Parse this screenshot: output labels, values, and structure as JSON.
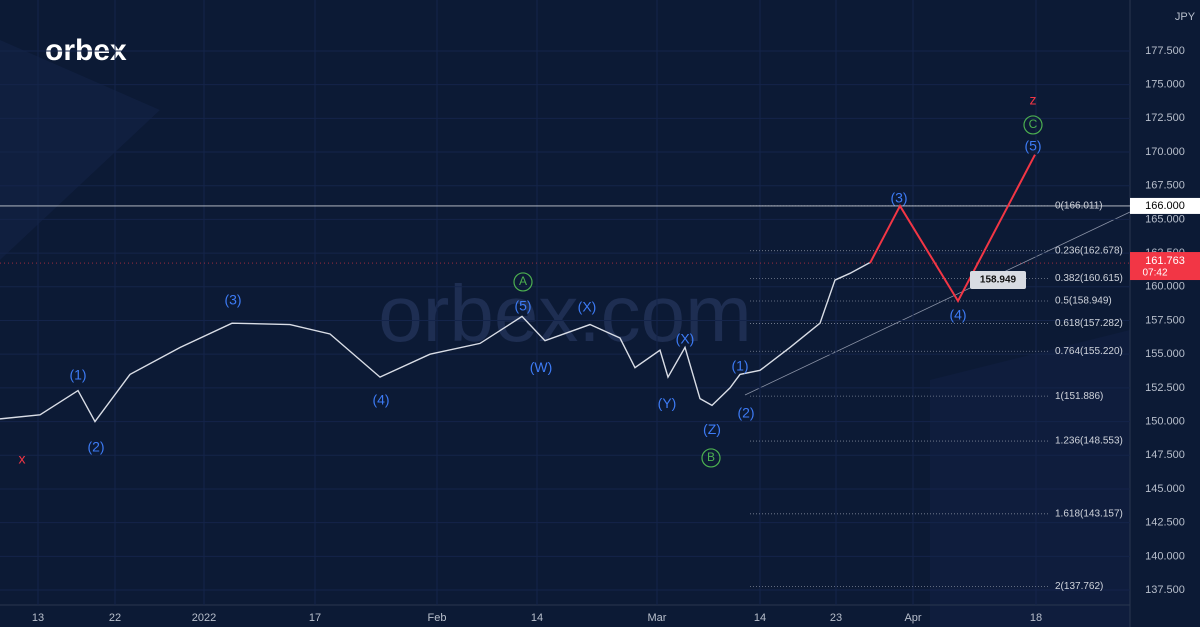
{
  "chart_data": {
    "type": "line",
    "symbol": "JPY",
    "logo": "orbex",
    "watermark": "orbex.com",
    "color": "#d9dde6",
    "x": [
      0,
      8,
      15.6,
      19,
      26,
      36,
      46.4,
      58,
      66,
      76,
      86,
      96,
      104.4,
      109,
      118,
      124,
      127,
      132,
      133.6,
      137,
      140,
      142.4,
      146,
      148,
      152,
      158,
      164,
      167,
      170,
      174
    ],
    "values": [
      150.2,
      150.5,
      152.3,
      150,
      153.5,
      155.5,
      157.3,
      157.2,
      156.5,
      153.3,
      155,
      155.8,
      157.8,
      156,
      157.2,
      156.2,
      154,
      155.3,
      153.3,
      155.5,
      151.7,
      151.2,
      152.5,
      153.5,
      153.8,
      155.5,
      157.3,
      160.5,
      161,
      161.8
    ],
    "xlim": [
      0,
      226
    ],
    "ylim": [
      181.28,
      136.39
    ],
    "xticks": [
      {
        "value": 7.6,
        "label": "13"
      },
      {
        "value": 23,
        "label": "22"
      },
      {
        "value": 40.8,
        "label": "2022"
      },
      {
        "value": 63,
        "label": "17"
      },
      {
        "value": 87.4,
        "label": "Feb"
      },
      {
        "value": 107.4,
        "label": "14"
      },
      {
        "value": 131.4,
        "label": "Mar"
      },
      {
        "value": 152,
        "label": "14"
      },
      {
        "value": 167.2,
        "label": "23"
      },
      {
        "value": 182.6,
        "label": "Apr"
      },
      {
        "value": 207.2,
        "label": "18"
      }
    ],
    "yticks": [
      {
        "value": 137.5,
        "label": "137.500"
      },
      {
        "value": 140,
        "label": "140.000"
      },
      {
        "value": 142.5,
        "label": "142.500"
      },
      {
        "value": 145,
        "label": "145.000"
      },
      {
        "value": 147.5,
        "label": "147.500"
      },
      {
        "value": 150,
        "label": "150.000"
      },
      {
        "value": 152.5,
        "label": "152.500"
      },
      {
        "value": 155,
        "label": "155.000"
      },
      {
        "value": 157.5,
        "label": "157.500"
      },
      {
        "value": 160,
        "label": "160.000"
      },
      {
        "value": 162.5,
        "label": "162.500"
      },
      {
        "value": 165,
        "label": "165.000"
      },
      {
        "value": 167.5,
        "label": "167.500"
      },
      {
        "value": 170,
        "label": "170.000"
      },
      {
        "value": 172.5,
        "label": "172.500"
      },
      {
        "value": 175,
        "label": "175.000"
      },
      {
        "value": 177.5,
        "label": "177.500"
      }
    ],
    "fib_levels": [
      {
        "label": "0(166.011)",
        "value": 166.011
      },
      {
        "label": "0.236(162.678)",
        "value": 162.678
      },
      {
        "label": "0.382(160.615)",
        "value": 160.615
      },
      {
        "label": "0.5(158.949)",
        "value": 158.949
      },
      {
        "label": "0.618(157.282)",
        "value": 157.282
      },
      {
        "label": "0.764(155.220)",
        "value": 155.22
      },
      {
        "label": "1(151.886)",
        "value": 151.886
      },
      {
        "label": "1.236(148.553)",
        "value": 148.553
      },
      {
        "label": "1.618(143.157)",
        "value": 143.157
      },
      {
        "label": "2(137.762)",
        "value": 137.762
      }
    ],
    "hline": {
      "value": 166.0,
      "label": "166.000"
    },
    "current_price": {
      "value": 161.763,
      "label": "161.763",
      "time": "07:42",
      "color": "#f23645"
    },
    "projection": {
      "x": [
        174,
        180,
        191.6,
        207
      ],
      "values": [
        161.76,
        166.0,
        158.949,
        169.8
      ],
      "color": "#f23645",
      "target": {
        "value": 158.949,
        "label": "158.949"
      }
    },
    "annotations": [
      {
        "text": "x",
        "x": 4.4,
        "y": 147.15,
        "color": "#f23645"
      },
      {
        "text": "(1)",
        "x": 15.6,
        "y": 153.38,
        "color": "#3d7bf5"
      },
      {
        "text": "(2)",
        "x": 19.2,
        "y": 148.04,
        "color": "#3d7bf5"
      },
      {
        "text": "(3)",
        "x": 46.6,
        "y": 158.95,
        "color": "#3d7bf5"
      },
      {
        "text": "(4)",
        "x": 76.2,
        "y": 151.53,
        "color": "#3d7bf5"
      },
      {
        "text": "A",
        "x": 104.6,
        "y": 160.36,
        "color": "#4caf50",
        "circled": true
      },
      {
        "text": "(5)",
        "x": 104.6,
        "y": 158.5,
        "color": "#3d7bf5"
      },
      {
        "text": "(W)",
        "x": 108.2,
        "y": 153.97,
        "color": "#3d7bf5"
      },
      {
        "text": "(X)",
        "x": 117.4,
        "y": 158.43,
        "color": "#3d7bf5"
      },
      {
        "text": "(X)",
        "x": 137,
        "y": 156.05,
        "color": "#3d7bf5"
      },
      {
        "text": "(Y)",
        "x": 133.4,
        "y": 151.3,
        "color": "#3d7bf5"
      },
      {
        "text": "(Z)",
        "x": 142.4,
        "y": 149.37,
        "color": "#3d7bf5"
      },
      {
        "text": "B",
        "x": 142.2,
        "y": 147.3,
        "color": "#4caf50",
        "circled": true
      },
      {
        "text": "(1)",
        "x": 148,
        "y": 154.05,
        "color": "#3d7bf5"
      },
      {
        "text": "(2)",
        "x": 149.2,
        "y": 150.56,
        "color": "#3d7bf5"
      },
      {
        "text": "(3)",
        "x": 179.8,
        "y": 166.52,
        "color": "#3d7bf5"
      },
      {
        "text": "(4)",
        "x": 191.6,
        "y": 157.83,
        "color": "#3d7bf5"
      },
      {
        "text": "(5)",
        "x": 206.6,
        "y": 170.38,
        "color": "#3d7bf5"
      },
      {
        "text": "C",
        "x": 206.6,
        "y": 172.01,
        "color": "#4caf50",
        "circled": true
      },
      {
        "text": "z",
        "x": 206.6,
        "y": 173.79,
        "color": "#f23645"
      }
    ]
  }
}
